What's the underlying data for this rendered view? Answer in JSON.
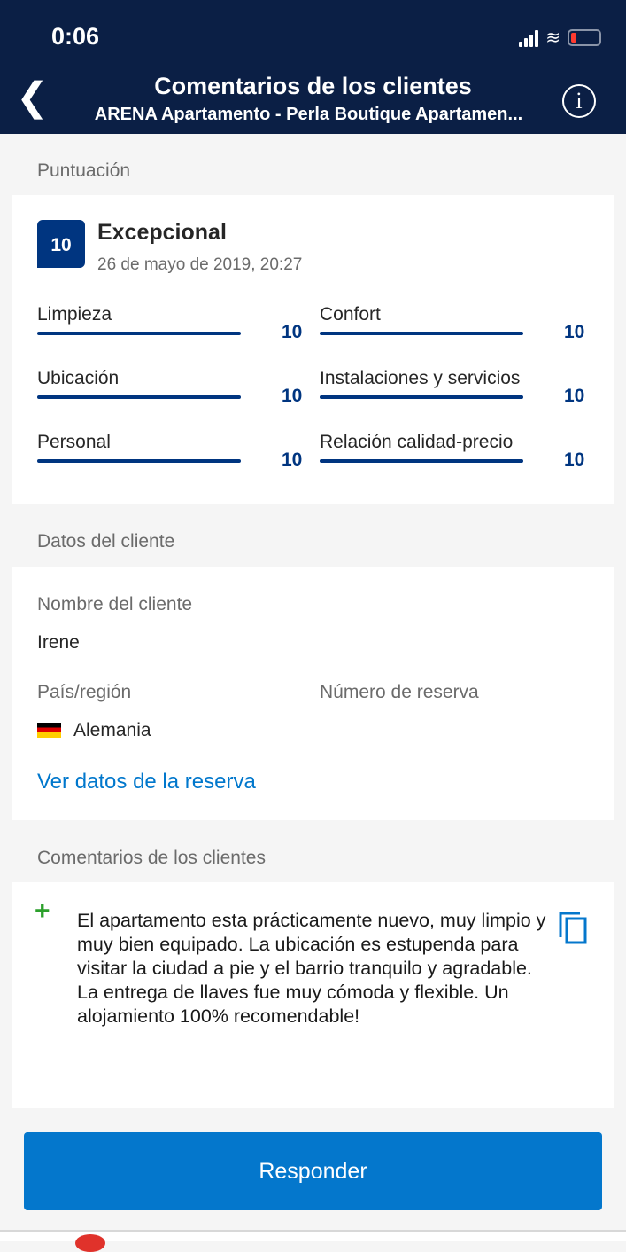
{
  "status_bar": {
    "time": "0:06"
  },
  "header": {
    "title": "Comentarios de los clientes",
    "subtitle": "ARENA Apartamento - Perla Boutique Apartamen..."
  },
  "score_section": {
    "label": "Puntuación",
    "score": "10",
    "rating": "Excepcional",
    "date": "26 de mayo de 2019, 20:27",
    "categories": [
      {
        "label": "Limpieza",
        "value": "10"
      },
      {
        "label": "Confort",
        "value": "10"
      },
      {
        "label": "Ubicación",
        "value": "10"
      },
      {
        "label": "Instalaciones y servicios",
        "value": "10"
      },
      {
        "label": "Personal",
        "value": "10"
      },
      {
        "label": "Relación calidad-precio",
        "value": "10"
      }
    ]
  },
  "guest_section": {
    "label": "Datos del cliente",
    "name_label": "Nombre del cliente",
    "name": "Irene",
    "country_label": "País/región",
    "country": "Alemania",
    "booking_label": "Número de reserva",
    "link": "Ver datos de la reserva"
  },
  "comments_section": {
    "label": "Comentarios de los clientes",
    "text": "El apartamento esta prácticamente nuevo, muy limpio y muy bien equipado. La ubicación es estupenda para visitar la ciudad a pie y el barrio tranquilo y agradable.\nLa entrega de llaves fue muy cómoda y flexible. Un alojamiento 100% recomendable!"
  },
  "reply_button": "Responder",
  "colors": {
    "header": "#0b1f45",
    "brand": "#003580",
    "button": "#0477cc",
    "positive": "#2ca02c"
  }
}
